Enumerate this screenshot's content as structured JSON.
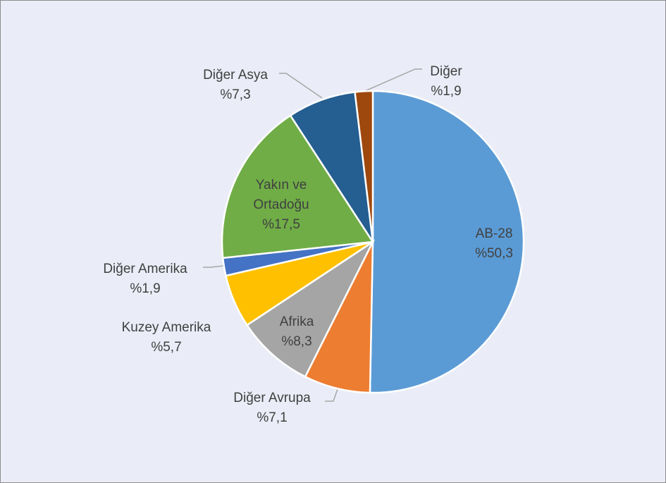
{
  "chart_data": {
    "type": "pie",
    "categories": [
      "AB-28",
      "Diğer Avrupa",
      "Afrika",
      "Kuzey Amerika",
      "Diğer Amerika",
      "Yakın ve Ortadoğu",
      "Diğer Asya",
      "Diğer"
    ],
    "values": [
      50.3,
      7.1,
      8.3,
      5.7,
      1.9,
      17.5,
      7.3,
      1.9
    ],
    "value_labels": [
      "%50,3",
      "%7,1",
      "%8,3",
      "%5,7",
      "%1,9",
      "%17,5",
      "%7,3",
      "%1,9"
    ],
    "colors": [
      "#5b9bd5",
      "#ed7d31",
      "#a5a5a5",
      "#ffc000",
      "#4472c4",
      "#70ad47",
      "#255e91",
      "#9e480e"
    ]
  }
}
